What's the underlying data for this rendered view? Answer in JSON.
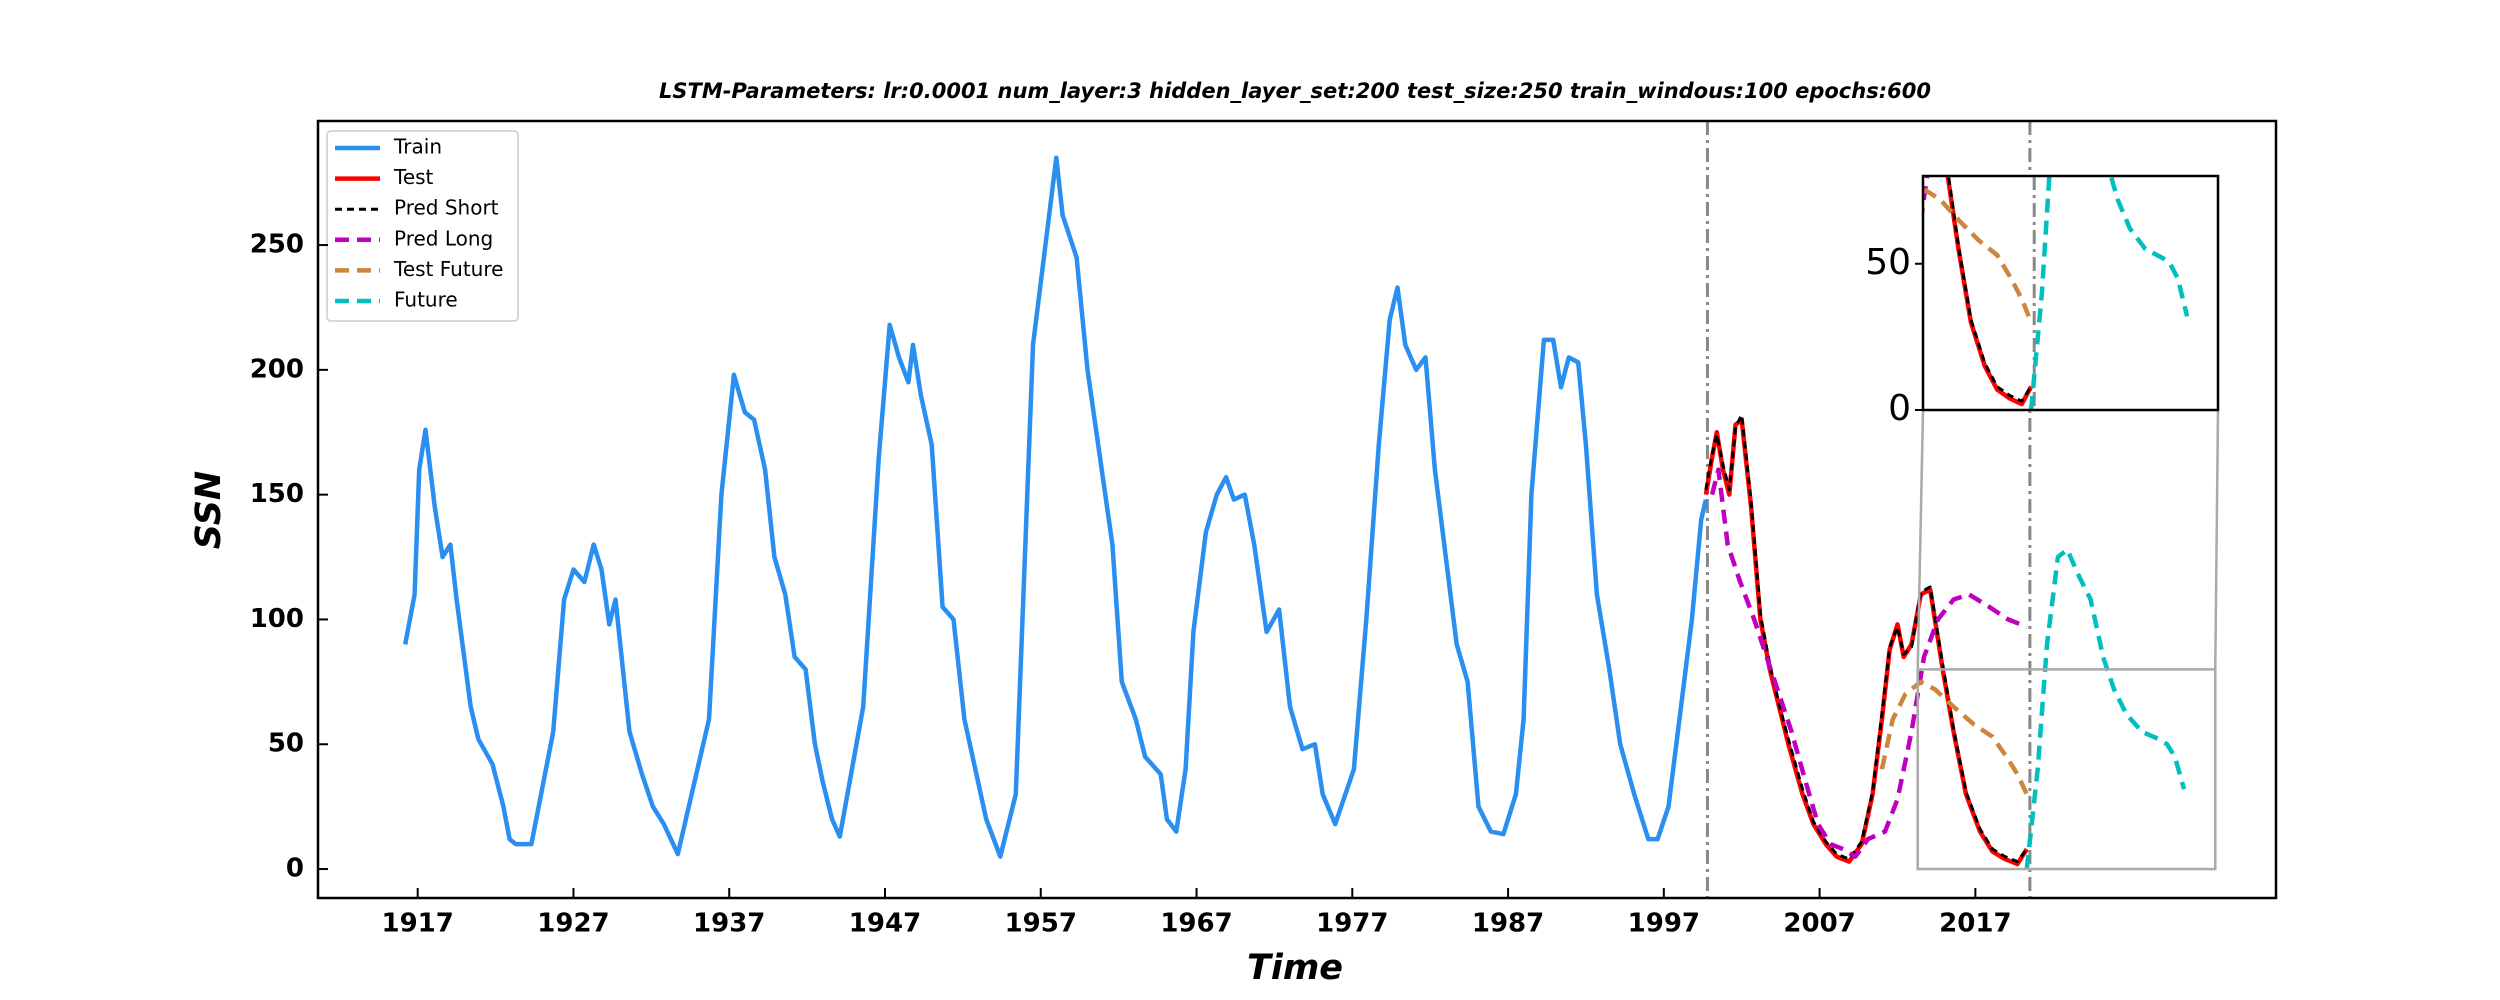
{
  "chart_data": {
    "type": "line",
    "title": "LSTM-Parameters: lr:0.0001 num_layer:3 hidden_layer_set:200 test_size:250 train_windous:100 epochs:600",
    "x_label": "Time",
    "y_label": "SSN",
    "xlim": [
      1910.6,
      2036.3
    ],
    "ylim": [
      -11.6,
      299.7
    ],
    "xticks": [
      1917,
      1927,
      1937,
      1947,
      1957,
      1967,
      1977,
      1987,
      1997,
      2007,
      2017
    ],
    "yticks": [
      0,
      50,
      100,
      150,
      200,
      250
    ],
    "vlines": [
      1999.8,
      2020.5
    ],
    "legend": "upper left",
    "series": [
      {
        "name": "Train",
        "color": "#2a8ff0",
        "linestyle": "solid",
        "x": [
          1916.2,
          1916.8,
          1917.1,
          1917.5,
          1918.1,
          1918.6,
          1919.1,
          1919.5,
          1920.4,
          1920.9,
          1921.8,
          1922.5,
          1922.9,
          1923.3,
          1924.3,
          1925.7,
          1926.4,
          1927.0,
          1927.7,
          1928.3,
          1928.8,
          1929.3,
          1929.7,
          1930.6,
          1931.4,
          1932.1,
          1932.8,
          1933.7,
          1935.7,
          1936.5,
          1937.3,
          1938.0,
          1938.6,
          1939.3,
          1939.9,
          1940.6,
          1941.2,
          1941.9,
          1942.5,
          1943.0,
          1943.6,
          1944.1,
          1945.6,
          1946.6,
          1947.3,
          1947.9,
          1948.5,
          1948.8,
          1949.3,
          1950.0,
          1950.7,
          1951.4,
          1952.1,
          1952.8,
          1953.5,
          1954.4,
          1955.4,
          1956.5,
          1958.0,
          1958.4,
          1959.3,
          1960.0,
          1961.6,
          1962.2,
          1963.1,
          1963.7,
          1964.7,
          1965.1,
          1965.7,
          1966.3,
          1966.8,
          1967.6,
          1968.3,
          1968.9,
          1969.4,
          1970.1,
          1970.7,
          1971.5,
          1972.3,
          1973.0,
          1973.8,
          1974.6,
          1975.1,
          1975.9,
          1977.1,
          1977.9,
          1978.7,
          1979.4,
          1979.9,
          1980.4,
          1981.1,
          1981.7,
          1982.3,
          1983.0,
          1983.7,
          1984.4,
          1985.1,
          1985.9,
          1986.7,
          1987.5,
          1988.0,
          1988.5,
          1989.3,
          1989.9,
          1990.4,
          1990.9,
          1991.5,
          1992.0,
          1992.7,
          1993.5,
          1994.2,
          1995.1,
          1996.0,
          1996.6,
          1997.3,
          1998.1,
          1998.8,
          1999.4,
          1999.7
        ],
        "values": [
          90,
          110,
          160,
          176,
          145,
          125,
          130,
          108,
          65,
          52,
          42,
          25,
          12,
          10,
          10,
          55,
          108,
          120,
          115,
          130,
          120,
          98,
          108,
          55,
          38,
          25,
          18,
          6,
          60,
          150,
          198,
          183,
          180,
          160,
          125,
          110,
          85,
          80,
          50,
          35,
          20,
          13,
          65,
          165,
          218,
          205,
          195,
          210,
          190,
          170,
          105,
          100,
          60,
          40,
          20,
          5,
          30,
          210,
          285,
          262,
          245,
          200,
          130,
          75,
          60,
          45,
          38,
          20,
          15,
          40,
          95,
          135,
          150,
          157,
          148,
          150,
          130,
          95,
          104,
          65,
          48,
          50,
          30,
          18,
          40,
          100,
          170,
          220,
          233,
          210,
          200,
          205,
          160,
          125,
          90,
          75,
          25,
          15,
          14,
          30,
          60,
          150,
          212,
          212,
          193,
          205,
          203,
          170,
          110,
          80,
          50,
          30,
          12,
          12,
          25,
          65,
          100,
          140,
          148
        ]
      },
      {
        "name": "Test",
        "color": "#ff0000",
        "linestyle": "solid",
        "x": [
          1999.7,
          2000.1,
          2000.4,
          2000.8,
          2001.2,
          2001.6,
          2002.0,
          2002.6,
          2003.2,
          2003.8,
          2004.4,
          2005.0,
          2005.9,
          2006.6,
          2007.4,
          2008.1,
          2008.9,
          2009.7,
          2010.4,
          2011.0,
          2011.5,
          2012.0,
          2012.4,
          2012.9,
          2013.5,
          2014.1,
          2014.9,
          2015.6,
          2016.4,
          2017.3,
          2018.1,
          2018.9,
          2019.7,
          2020.3
        ],
        "values": [
          150,
          165,
          175,
          160,
          150,
          178,
          180,
          145,
          100,
          80,
          65,
          50,
          30,
          18,
          10,
          5,
          3,
          10,
          30,
          60,
          88,
          98,
          85,
          90,
          110,
          112,
          80,
          55,
          30,
          15,
          7,
          4,
          2,
          8
        ]
      },
      {
        "name": "Pred Short",
        "color": "#000000",
        "linestyle": "dashed",
        "x": [
          1999.7,
          2000.1,
          2000.4,
          2000.8,
          2001.2,
          2001.6,
          2002.0,
          2002.6,
          2003.2,
          2003.8,
          2004.4,
          2005.0,
          2005.9,
          2006.6,
          2007.4,
          2008.1,
          2008.9,
          2009.7,
          2010.4,
          2011.0,
          2011.5,
          2012.0,
          2012.4,
          2012.9,
          2013.5,
          2014.1,
          2014.9,
          2015.6,
          2016.4,
          2017.3,
          2018.1,
          2018.9,
          2019.7,
          2020.3
        ],
        "values": [
          152,
          166,
          174,
          162,
          152,
          177,
          182,
          147,
          102,
          82,
          66,
          52,
          32,
          19,
          11,
          6,
          4,
          11,
          31,
          62,
          89,
          97,
          86,
          89,
          111,
          113,
          82,
          56,
          31,
          16,
          8,
          5,
          3,
          8
        ]
      },
      {
        "name": "Pred Long",
        "color": "#c000c0",
        "linestyle": "dashed",
        "x": [
          2000.1,
          2000.5,
          2001.1,
          2001.9,
          2002.8,
          2003.6,
          2004.4,
          2005.2,
          2006.1,
          2006.9,
          2007.7,
          2008.5,
          2009.3,
          2010.1,
          2011.2,
          2012.0,
          2012.9,
          2013.7,
          2014.6,
          2015.6,
          2016.6,
          2017.9,
          2019.1,
          2020.3
        ],
        "values": [
          150,
          160,
          130,
          115,
          100,
          85,
          70,
          55,
          35,
          18,
          10,
          8,
          5,
          12,
          15,
          28,
          55,
          85,
          100,
          108,
          110,
          105,
          100,
          97
        ]
      },
      {
        "name": "Test Future",
        "color": "#cd853f",
        "linestyle": "dashed",
        "x": [
          2011.0,
          2011.7,
          2012.5,
          2013.5,
          2014.4,
          2015.6,
          2016.9,
          2018.1,
          2019.0,
          2019.7,
          2020.3
        ],
        "values": [
          40,
          60,
          70,
          75,
          72,
          65,
          58,
          53,
          45,
          38,
          30
        ]
      },
      {
        "name": "Future",
        "color": "#00bfbf",
        "linestyle": "dashed",
        "x": [
          2020.3,
          2021.0,
          2021.6,
          2022.3,
          2022.9,
          2023.6,
          2024.4,
          2025.2,
          2025.9,
          2026.7,
          2027.7,
          2028.8,
          2029.3,
          2029.8,
          2030.4
        ],
        "values": [
          0,
          40,
          90,
          125,
          128,
          118,
          108,
          85,
          72,
          62,
          55,
          52,
          50,
          45,
          32
        ]
      }
    ],
    "inset": {
      "xlim": [
        2013.3,
        2032.4
      ],
      "ylim": [
        0,
        80
      ],
      "yticks": [
        0,
        50
      ]
    }
  }
}
